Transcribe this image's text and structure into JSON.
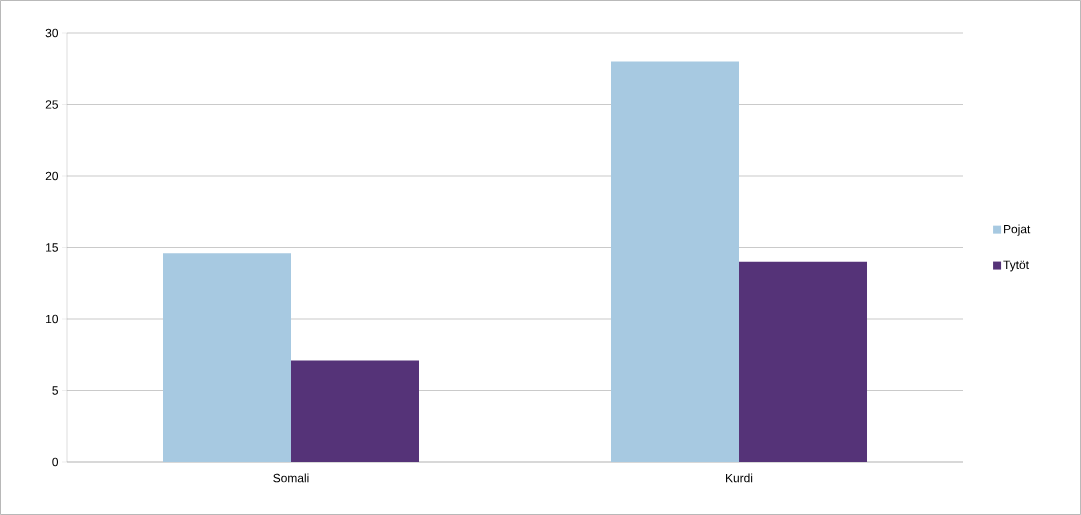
{
  "chart_data": {
    "type": "bar",
    "categories": [
      "Somali",
      "Kurdi"
    ],
    "series": [
      {
        "name": "Pojat",
        "color": "#a7c9e1",
        "values": [
          14.6,
          28.0
        ]
      },
      {
        "name": "Tytöt",
        "color": "#553378",
        "values": [
          7.1,
          14.0
        ]
      }
    ],
    "ylim": [
      0,
      30
    ],
    "yticks": [
      0,
      5,
      10,
      15,
      20,
      25,
      30
    ],
    "grid": "y",
    "legend": "right"
  }
}
